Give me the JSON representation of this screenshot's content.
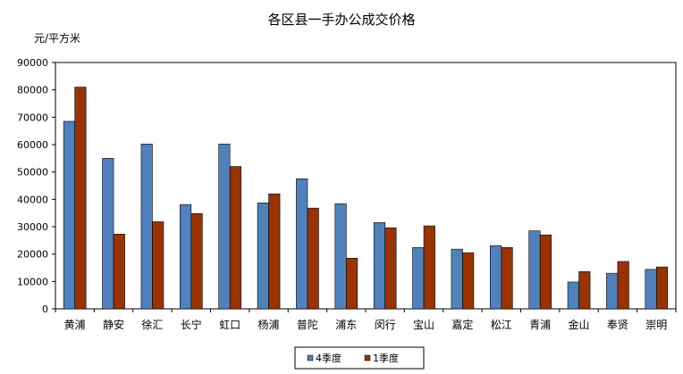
{
  "chart_data": {
    "type": "bar",
    "title": "各区县一手办公成交价格",
    "ylabel": "元/平方米",
    "ylim": [
      0,
      90000
    ],
    "yticks": [
      0,
      10000,
      20000,
      30000,
      40000,
      50000,
      60000,
      70000,
      80000,
      90000
    ],
    "grid": false,
    "legend_position": "bottom",
    "categories": [
      "黄浦",
      "静安",
      "徐汇",
      "长宁",
      "虹口",
      "杨浦",
      "普陀",
      "浦东",
      "闵行",
      "宝山",
      "嘉定",
      "松江",
      "青浦",
      "金山",
      "奉贤",
      "崇明"
    ],
    "series": [
      {
        "name": "4季度",
        "color": "#4F81BD",
        "values": [
          68500,
          55000,
          60200,
          38100,
          60200,
          38700,
          47500,
          38400,
          31500,
          22400,
          21800,
          23100,
          28500,
          9800,
          13000,
          14400
        ]
      },
      {
        "name": "1季度",
        "color": "#993300",
        "values": [
          81000,
          27300,
          31800,
          34800,
          52000,
          42000,
          36800,
          18500,
          29600,
          30300,
          20500,
          22400,
          27000,
          13600,
          17300,
          15300
        ]
      }
    ]
  }
}
